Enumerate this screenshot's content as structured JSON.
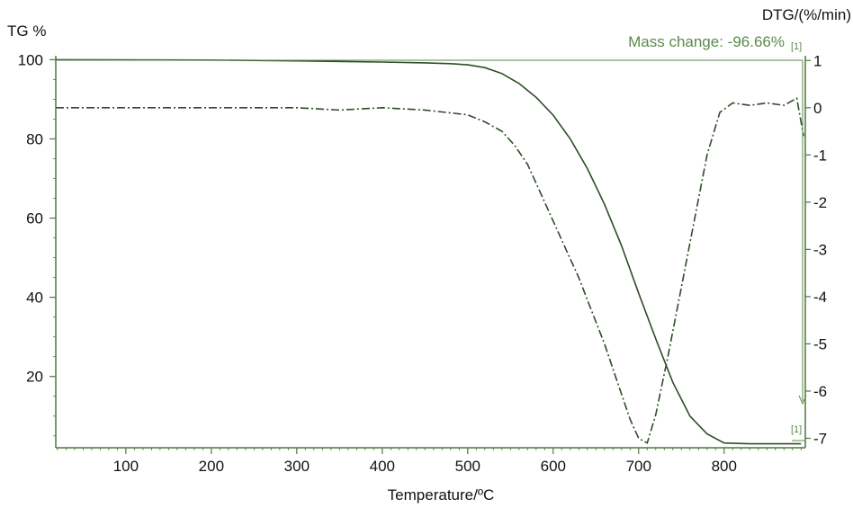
{
  "chart_data": {
    "type": "line",
    "xlabel": "Temperature/ºC",
    "ylabel_left": "TG %",
    "ylabel_right": "DTG/(%/min)",
    "xlim": [
      18,
      895
    ],
    "ylim_left": [
      2,
      101
    ],
    "ylim_right": [
      -7.2,
      1.1
    ],
    "x_ticks": [
      100,
      200,
      300,
      400,
      500,
      600,
      700,
      800
    ],
    "y_left_ticks": [
      20,
      40,
      60,
      80,
      100
    ],
    "y_right_ticks": [
      1,
      0,
      -1,
      -2,
      -3,
      -4,
      -5,
      -6,
      -7
    ],
    "grid": false,
    "colors": {
      "axis": "#4a7a3a",
      "tg": "#2e4d28",
      "dtg": "#2e4d28",
      "annotation": "#5a8a4a",
      "text": "#111111"
    },
    "annotation": {
      "text": "Mass change: -96.66%",
      "marker_top": "[1]",
      "marker_bottom": "[1]"
    },
    "series": [
      {
        "axis": "left",
        "style": "solid",
        "x": [
          18,
          200,
          300,
          400,
          450,
          480,
          500,
          520,
          540,
          560,
          580,
          600,
          620,
          640,
          660,
          680,
          700,
          720,
          740,
          760,
          780,
          800,
          830,
          860,
          890
        ],
        "y": [
          100,
          99.9,
          99.7,
          99.4,
          99.2,
          99,
          98.7,
          98,
          96.5,
          94,
          90.5,
          86,
          80,
          72.5,
          63.5,
          53,
          41,
          29.5,
          18.5,
          10,
          5.5,
          3.2,
          3,
          3,
          3
        ]
      },
      {
        "axis": "right",
        "style": "dashdot",
        "x": [
          18,
          50,
          100,
          150,
          200,
          250,
          300,
          350,
          400,
          450,
          500,
          520,
          540,
          555,
          570,
          585,
          600,
          615,
          630,
          645,
          660,
          675,
          690,
          700,
          710,
          720,
          735,
          750,
          765,
          780,
          795,
          810,
          830,
          850,
          870,
          885,
          893
        ],
        "y": [
          0,
          0,
          0,
          0,
          0,
          0,
          0,
          -0.05,
          0,
          -0.05,
          -0.15,
          -0.3,
          -0.5,
          -0.8,
          -1.2,
          -1.8,
          -2.4,
          -3.0,
          -3.6,
          -4.3,
          -5.0,
          -5.8,
          -6.6,
          -7.0,
          -7.1,
          -6.5,
          -5.2,
          -3.8,
          -2.4,
          -1.0,
          -0.1,
          0.1,
          0.05,
          0.1,
          0.05,
          0.2,
          -0.6
        ]
      }
    ]
  }
}
